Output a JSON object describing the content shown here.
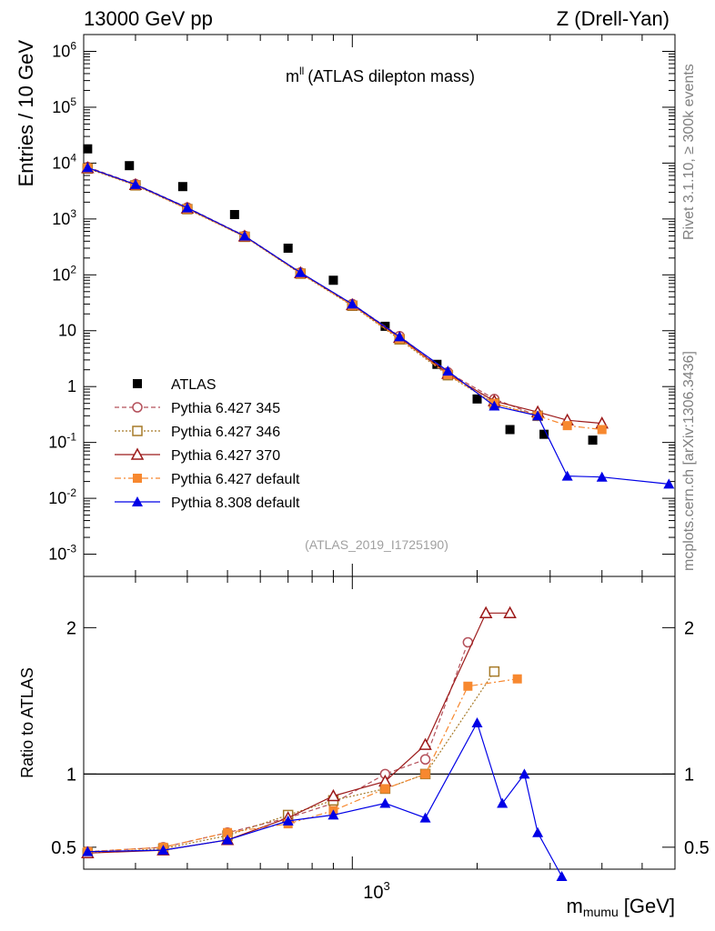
{
  "header": {
    "left": "13000 GeV pp",
    "right": "Z (Drell-Yan)"
  },
  "side_text": {
    "rivet": "Rivet 3.1.10, ≥ 300k events",
    "mcplots": "mcplots.cern.ch [arXiv:1306.3436]"
  },
  "chart_data": [
    {
      "type": "scatter",
      "title_main": "m",
      "title_sup": "ll",
      "title_rest": "(ATLAS dilepton mass)",
      "analysis_id": "(ATLAS_2019_I1725190)",
      "ylabel": "Entries / 10 GeV",
      "yscale": "log",
      "ylim": [
        0.0004,
        2000000
      ],
      "xscale": "log",
      "xlim": [
        225,
        6000
      ],
      "y_ticklabels": [
        "10^6",
        "10^5",
        "10^4",
        "10^3",
        "10^2",
        "10",
        "1",
        "10^-1",
        "10^-2",
        "10^-3"
      ],
      "y_tick_values": [
        1000000,
        100000,
        10000,
        1000,
        100,
        10,
        1,
        0.1,
        0.01,
        0.001
      ],
      "legend_position": "lower-left",
      "series": [
        {
          "name": "ATLAS",
          "color": "#000000",
          "marker": "square-filled",
          "x": [
            230,
            290,
            390,
            520,
            700,
            900,
            1200,
            1600,
            2000,
            2400,
            2900,
            3800
          ],
          "y": [
            18000,
            9000,
            3800,
            1200,
            300,
            80,
            12,
            2.5,
            0.6,
            0.17,
            0.14,
            0.11
          ]
        },
        {
          "name": "Pythia 6.427 345",
          "color": "#b4505a",
          "marker": "circle-open",
          "line": "dashed",
          "x": [
            230,
            300,
            400,
            550,
            750,
            1000,
            1300,
            1700,
            2200,
            2800
          ],
          "y": [
            8500,
            4200,
            1600,
            500,
            110,
            30,
            8,
            1.8,
            0.6,
            0.3
          ]
        },
        {
          "name": "Pythia 6.427 346",
          "color": "#a67a28",
          "marker": "square-open",
          "line": "dotted",
          "x": [
            230,
            300,
            400,
            550,
            750,
            1000,
            1300,
            1700,
            2200,
            2800
          ],
          "y": [
            8000,
            4000,
            1500,
            480,
            105,
            28,
            7,
            1.6,
            0.5,
            0.3
          ]
        },
        {
          "name": "Pythia 6.427 370",
          "color": "#9c1a1a",
          "marker": "triangle-open",
          "line": "solid",
          "x": [
            230,
            300,
            400,
            550,
            750,
            1000,
            1300,
            1700,
            2200,
            2800,
            3300,
            4000
          ],
          "y": [
            8200,
            4100,
            1550,
            490,
            108,
            29,
            7.5,
            1.7,
            0.55,
            0.35,
            0.25,
            0.22
          ]
        },
        {
          "name": "Pythia 6.427 default",
          "color": "#f7882f",
          "marker": "square-filled",
          "line": "dashdot",
          "x": [
            230,
            300,
            400,
            550,
            750,
            1000,
            1300,
            1700,
            2200,
            2800,
            3300,
            4000
          ],
          "y": [
            8100,
            4050,
            1520,
            485,
            106,
            28.5,
            7.2,
            1.65,
            0.5,
            0.3,
            0.2,
            0.17
          ]
        },
        {
          "name": "Pythia 8.308 default",
          "color": "#0000e6",
          "marker": "triangle-filled",
          "line": "solid",
          "x": [
            230,
            300,
            400,
            550,
            750,
            1000,
            1300,
            1700,
            2200,
            2800,
            3300,
            4000,
            5800
          ],
          "y": [
            8300,
            4150,
            1580,
            495,
            110,
            30,
            7.8,
            1.9,
            0.45,
            0.3,
            0.025,
            0.024,
            0.018
          ]
        }
      ]
    },
    {
      "type": "scatter",
      "ylabel": "Ratio to ATLAS",
      "ylim": [
        0.35,
        2.35
      ],
      "y_ticklabels": [
        "2",
        "1",
        "0.5"
      ],
      "y_tick_values": [
        2,
        1,
        0.5
      ],
      "reference_line": 1,
      "xlabel_main": "m",
      "xlabel_sub": "mumu",
      "xlabel_unit": "[GeV]",
      "x_ticklabel_main": "10",
      "x_ticklabel_exp": "3",
      "series": [
        {
          "name": "Pythia 6.427 345",
          "x": [
            230,
            350,
            500,
            700,
            900,
            1200,
            1500,
            1900
          ],
          "y": [
            0.47,
            0.5,
            0.6,
            0.7,
            0.8,
            1.0,
            1.1,
            1.9
          ]
        },
        {
          "name": "Pythia 6.427 346",
          "x": [
            230,
            350,
            500,
            700,
            900,
            1200,
            1500,
            2200
          ],
          "y": [
            0.46,
            0.49,
            0.58,
            0.72,
            0.82,
            0.9,
            1.0,
            1.7
          ]
        },
        {
          "name": "Pythia 6.427 370",
          "x": [
            230,
            350,
            500,
            700,
            900,
            1200,
            1500,
            2100,
            2400
          ],
          "y": [
            0.46,
            0.48,
            0.55,
            0.7,
            0.85,
            0.95,
            1.2,
            2.1,
            2.1
          ]
        },
        {
          "name": "Pythia 6.427 default",
          "x": [
            230,
            350,
            500,
            700,
            900,
            1200,
            1500,
            1900,
            2500
          ],
          "y": [
            0.47,
            0.5,
            0.6,
            0.66,
            0.75,
            0.9,
            1.0,
            1.6,
            1.65
          ]
        },
        {
          "name": "Pythia 8.308 default",
          "x": [
            230,
            350,
            500,
            700,
            900,
            1200,
            1500,
            2000,
            2300,
            2600,
            2800,
            3200
          ],
          "y": [
            0.47,
            0.48,
            0.55,
            0.68,
            0.72,
            0.8,
            0.7,
            1.35,
            0.8,
            1.0,
            0.6,
            0.3
          ]
        }
      ]
    }
  ]
}
